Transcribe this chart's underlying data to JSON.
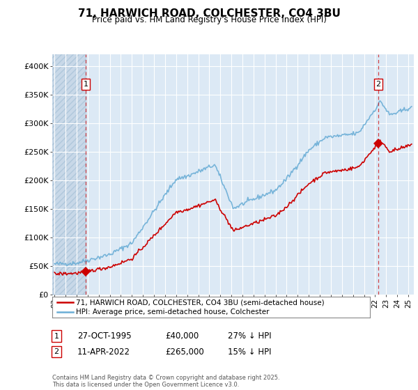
{
  "title": "71, HARWICH ROAD, COLCHESTER, CO4 3BU",
  "subtitle": "Price paid vs. HM Land Registry's House Price Index (HPI)",
  "ylabel_ticks": [
    "£0",
    "£50K",
    "£100K",
    "£150K",
    "£200K",
    "£250K",
    "£300K",
    "£350K",
    "£400K"
  ],
  "ytick_values": [
    0,
    50000,
    100000,
    150000,
    200000,
    250000,
    300000,
    350000,
    400000
  ],
  "ylim": [
    0,
    420000
  ],
  "xlim_start": 1992.8,
  "xlim_end": 2025.5,
  "hpi_color": "#6baed6",
  "price_color": "#cc0000",
  "dashed_color": "#cc0000",
  "point1_x": 1995.82,
  "point1_y": 40000,
  "point1_label": "1",
  "point2_x": 2022.28,
  "point2_y": 265000,
  "point2_label": "2",
  "annotation1": "27-OCT-1995",
  "annotation1_price": "£40,000",
  "annotation1_hpi": "27% ↓ HPI",
  "annotation2": "11-APR-2022",
  "annotation2_price": "£265,000",
  "annotation2_hpi": "15% ↓ HPI",
  "legend_label1": "71, HARWICH ROAD, COLCHESTER, CO4 3BU (semi-detached house)",
  "legend_label2": "HPI: Average price, semi-detached house, Colchester",
  "footer": "Contains HM Land Registry data © Crown copyright and database right 2025.\nThis data is licensed under the Open Government Licence v3.0.",
  "background_color": "#ffffff",
  "plot_bg_color": "#dce9f5",
  "grid_color": "#ffffff",
  "hatch_color": "#c8d8e8"
}
